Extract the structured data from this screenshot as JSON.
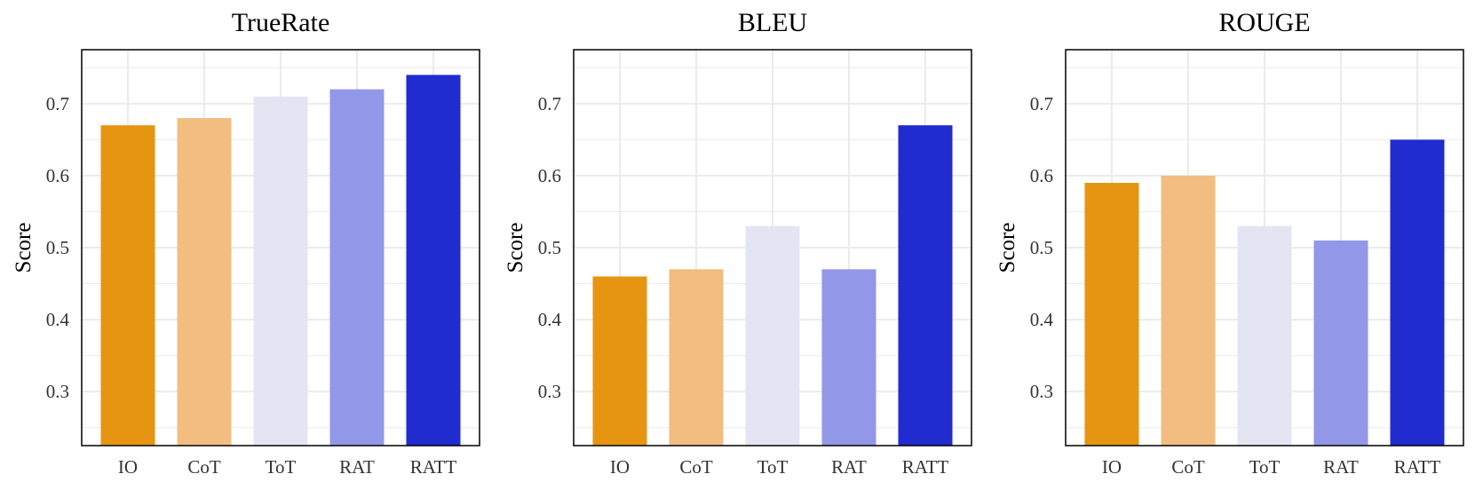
{
  "chart_data": [
    {
      "type": "bar",
      "title": "TrueRate",
      "xlabel": "",
      "ylabel": "Score",
      "ylim": [
        0.225,
        0.775
      ],
      "yticks": [
        "0.3",
        "0.4",
        "0.5",
        "0.6",
        "0.7"
      ],
      "categories": [
        "IO",
        "CoT",
        "ToT",
        "RAT",
        "RATT"
      ],
      "values": [
        0.67,
        0.68,
        0.71,
        0.72,
        0.74
      ],
      "grid": true,
      "legend": "none"
    },
    {
      "type": "bar",
      "title": "BLEU",
      "xlabel": "",
      "ylabel": "Score",
      "ylim": [
        0.225,
        0.775
      ],
      "yticks": [
        "0.3",
        "0.4",
        "0.5",
        "0.6",
        "0.7"
      ],
      "categories": [
        "IO",
        "CoT",
        "ToT",
        "RAT",
        "RATT"
      ],
      "values": [
        0.46,
        0.47,
        0.53,
        0.47,
        0.67
      ],
      "grid": true,
      "legend": "none"
    },
    {
      "type": "bar",
      "title": "ROUGE",
      "xlabel": "",
      "ylabel": "Score",
      "ylim": [
        0.225,
        0.775
      ],
      "yticks": [
        "0.3",
        "0.4",
        "0.5",
        "0.6",
        "0.7"
      ],
      "categories": [
        "IO",
        "CoT",
        "ToT",
        "RAT",
        "RATT"
      ],
      "values": [
        0.59,
        0.6,
        0.53,
        0.51,
        0.65
      ],
      "grid": true,
      "legend": "none"
    }
  ],
  "colors": {
    "IO": "#e69512",
    "CoT": "#f2bd80",
    "ToT": "#e4e4f2",
    "RAT": "#9297e8",
    "RATT": "#202bd0",
    "grid": "#ebebeb",
    "frame": "#000000"
  }
}
